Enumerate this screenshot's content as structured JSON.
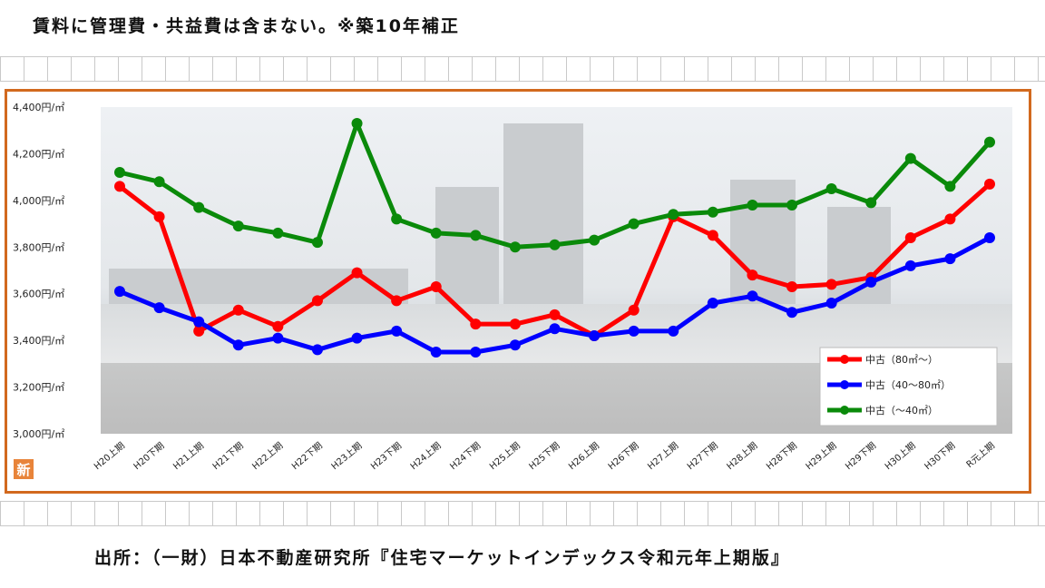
{
  "header_note": "賃料に管理費・共益費は含まない。※築10年補正",
  "source_note": "出所：（一財）日本不動産研究所『住宅マーケットインデックス令和元年上期版』",
  "badge_text": "新",
  "chart_data": {
    "type": "line",
    "title": "",
    "xlabel": "",
    "ylabel": "",
    "ylim": [
      3000,
      4400
    ],
    "yticks": [
      3000,
      3200,
      3400,
      3600,
      3800,
      4000,
      4200,
      4400
    ],
    "ytick_labels": [
      "3,000円/㎡",
      "3,200円/㎡",
      "3,400円/㎡",
      "3,600円/㎡",
      "3,800円/㎡",
      "4,000円/㎡",
      "4,200円/㎡",
      "4,400円/㎡"
    ],
    "grid": false,
    "legend_position": "bottom-right",
    "categories": [
      "H20上期",
      "H20下期",
      "H21上期",
      "H21下期",
      "H22上期",
      "H22下期",
      "H23上期",
      "H23下期",
      "H24上期",
      "H24下期",
      "H25上期",
      "H25下期",
      "H26上期",
      "H26下期",
      "H27上期",
      "H27下期",
      "H28上期",
      "H28下期",
      "H29上期",
      "H29下期",
      "H30上期",
      "H30下期",
      "R元上期"
    ],
    "series": [
      {
        "name": "中古（80㎡～）",
        "color": "#ff0000",
        "values": [
          4060,
          3930,
          3440,
          3530,
          3460,
          3570,
          3690,
          3570,
          3630,
          3470,
          3470,
          3510,
          3420,
          3530,
          3930,
          3850,
          3680,
          3630,
          3640,
          3670,
          3840,
          3920,
          4070
        ]
      },
      {
        "name": "中古（40～80㎡）",
        "color": "#0000ff",
        "values": [
          3610,
          3540,
          3480,
          3380,
          3410,
          3360,
          3410,
          3440,
          3350,
          3350,
          3380,
          3450,
          3420,
          3440,
          3440,
          3560,
          3590,
          3520,
          3560,
          3650,
          3720,
          3750,
          3840
        ]
      },
      {
        "name": "中古（～40㎡）",
        "color": "#0a8a0a",
        "values": [
          4120,
          4080,
          3970,
          3890,
          3860,
          3820,
          4330,
          3920,
          3860,
          3850,
          3800,
          3810,
          3830,
          3900,
          3940,
          3950,
          3980,
          3980,
          4050,
          3990,
          4180,
          4060,
          4250
        ]
      }
    ]
  }
}
